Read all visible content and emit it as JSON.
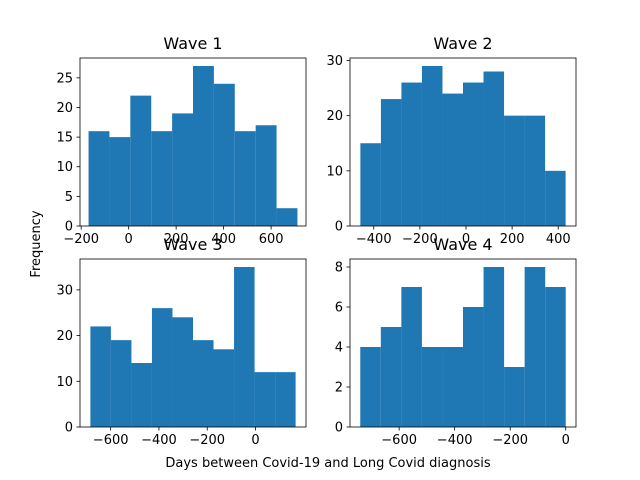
{
  "figure": {
    "xlabel": "Days between Covid-19 and Long Covid diagnosis",
    "ylabel": "Frequency"
  },
  "chart_data": [
    {
      "type": "bar",
      "subtype": "histogram",
      "title": "Wave 1",
      "bin_edges": [
        -169,
        -81,
        7,
        95,
        183,
        271,
        359,
        447,
        535,
        623,
        711
      ],
      "values": [
        16,
        15,
        22,
        16,
        19,
        27,
        24,
        16,
        17,
        3
      ],
      "xlim": [
        -205,
        747
      ],
      "ylim": [
        0,
        28.35
      ],
      "xticks": [
        -200,
        0,
        200,
        400,
        600
      ],
      "xtick_labels": [
        "−200",
        "0",
        "200",
        "400",
        "600"
      ],
      "yticks": [
        0,
        5,
        10,
        15,
        20,
        25
      ],
      "ytick_labels": [
        "0",
        "5",
        "10",
        "15",
        "20",
        "25"
      ],
      "color": "#1f77b4",
      "grid": false
    },
    {
      "type": "bar",
      "subtype": "histogram",
      "title": "Wave 2",
      "bin_edges": [
        -458,
        -369,
        -280,
        -191,
        -102,
        -13,
        76,
        165,
        254,
        343,
        432
      ],
      "values": [
        15,
        23,
        26,
        29,
        24,
        26,
        28,
        20,
        20,
        10
      ],
      "xlim": [
        -503,
        477
      ],
      "ylim": [
        0,
        30.45
      ],
      "xticks": [
        -400,
        -200,
        0,
        200,
        400
      ],
      "xtick_labels": [
        "−400",
        "−200",
        "0",
        "200",
        "400"
      ],
      "yticks": [
        0,
        10,
        20,
        30
      ],
      "ytick_labels": [
        "0",
        "10",
        "20",
        "30"
      ],
      "color": "#1f77b4",
      "grid": false
    },
    {
      "type": "bar",
      "subtype": "histogram",
      "title": "Wave 3",
      "bin_edges": [
        -684,
        -599,
        -514,
        -429,
        -344,
        -259,
        -174,
        -89,
        -4,
        81,
        166
      ],
      "values": [
        22,
        19,
        14,
        26,
        24,
        19,
        17,
        35,
        12,
        12
      ],
      "xlim": [
        -727,
        209
      ],
      "ylim": [
        0,
        36.75
      ],
      "xticks": [
        -600,
        -400,
        -200,
        0
      ],
      "xtick_labels": [
        "−600",
        "−400",
        "−200",
        "0"
      ],
      "yticks": [
        0,
        10,
        20,
        30
      ],
      "ytick_labels": [
        "0",
        "10",
        "20",
        "30"
      ],
      "color": "#1f77b4",
      "grid": false
    },
    {
      "type": "bar",
      "subtype": "histogram",
      "title": "Wave 4",
      "bin_edges": [
        -740,
        -666,
        -592,
        -518,
        -444,
        -370,
        -296,
        -222,
        -148,
        -74,
        0
      ],
      "values": [
        4,
        5,
        7,
        4,
        4,
        6,
        8,
        3,
        8,
        7
      ],
      "xlim": [
        -777,
        37
      ],
      "ylim": [
        0,
        8.4
      ],
      "xticks": [
        -600,
        -400,
        -200,
        0
      ],
      "xtick_labels": [
        "−600",
        "−400",
        "−200",
        "0"
      ],
      "yticks": [
        0,
        2,
        4,
        6,
        8
      ],
      "ytick_labels": [
        "0",
        "2",
        "4",
        "6",
        "8"
      ],
      "color": "#1f77b4",
      "grid": false
    }
  ]
}
